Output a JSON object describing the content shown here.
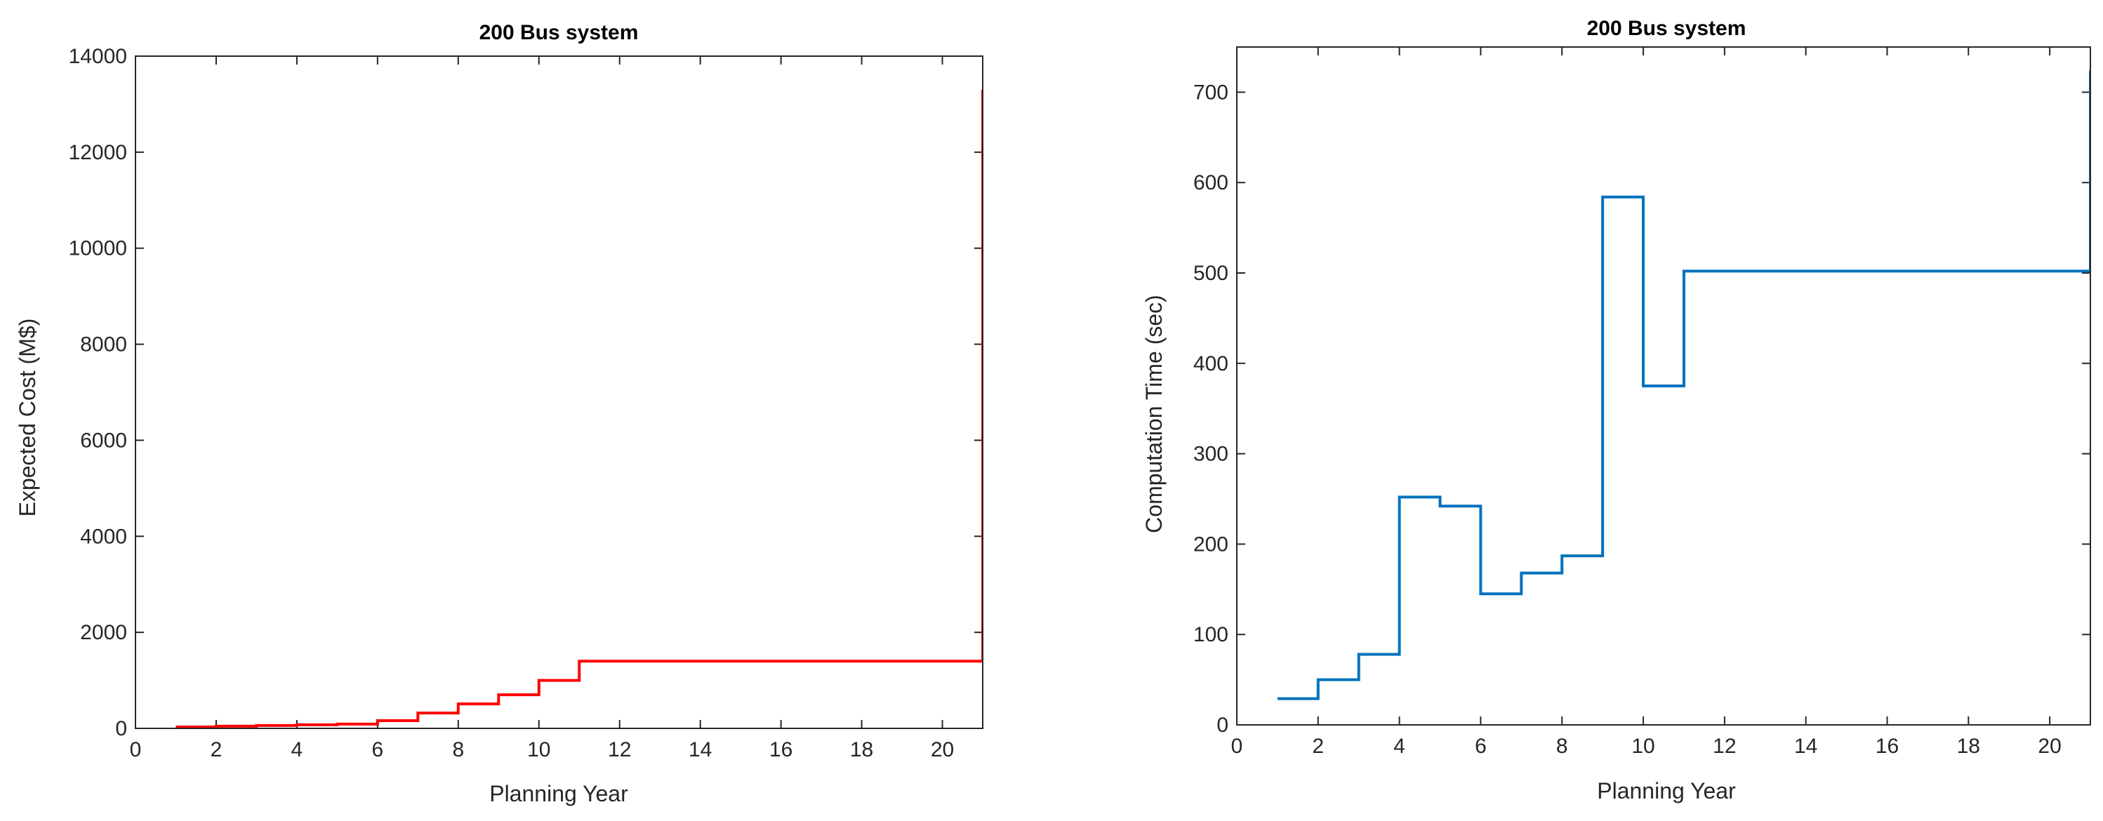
{
  "chart_data": [
    {
      "type": "line",
      "style": "step",
      "title": "200 Bus system",
      "xlabel": "Planning Year",
      "ylabel": "Expected Cost (M$)",
      "xlim": [
        0,
        21
      ],
      "ylim": [
        0,
        14000
      ],
      "xticks": [
        0,
        2,
        4,
        6,
        8,
        10,
        12,
        14,
        16,
        18,
        20
      ],
      "yticks": [
        0,
        2000,
        4000,
        6000,
        8000,
        10000,
        12000,
        14000
      ],
      "grid": false,
      "color": "#ff0000",
      "x": [
        1,
        2,
        3,
        4,
        5,
        6,
        7,
        8,
        9,
        10,
        11,
        20,
        21
      ],
      "y": [
        30,
        45,
        60,
        75,
        90,
        160,
        320,
        510,
        700,
        1000,
        1400,
        1400,
        13300
      ]
    },
    {
      "type": "line",
      "style": "step",
      "title": "200 Bus system",
      "xlabel": "Planning Year",
      "ylabel": "Computation Time (sec)",
      "xlim": [
        0,
        21
      ],
      "ylim": [
        0,
        750
      ],
      "xticks": [
        0,
        2,
        4,
        6,
        8,
        10,
        12,
        14,
        16,
        18,
        20
      ],
      "yticks": [
        0,
        100,
        200,
        300,
        400,
        500,
        600,
        700
      ],
      "grid": false,
      "color": "#0072bd",
      "x": [
        1,
        2,
        3,
        4,
        5,
        6,
        7,
        8,
        9,
        10,
        11,
        20,
        21
      ],
      "y": [
        29,
        50,
        78,
        252,
        242,
        145,
        168,
        187,
        584,
        375,
        502,
        502,
        724
      ]
    }
  ]
}
